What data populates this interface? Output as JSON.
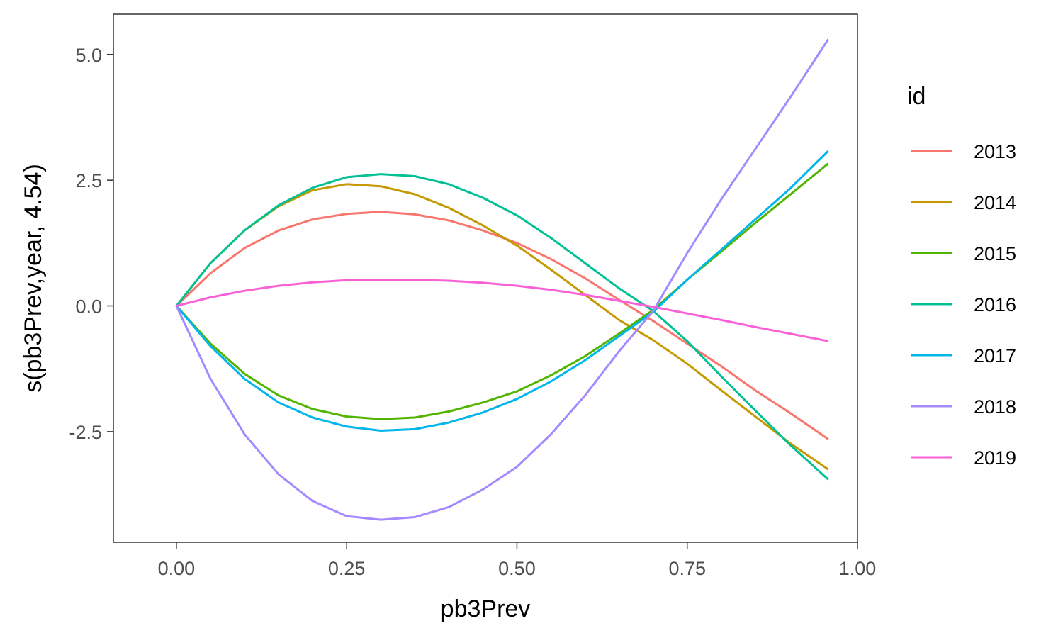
{
  "chart_data": {
    "type": "line",
    "xlabel": "pb3Prev",
    "ylabel": "s(pb3Prev,year, 4.54)",
    "xlim": [
      -0.0925,
      1.0
    ],
    "ylim": [
      -4.7,
      5.8
    ],
    "x_ticks": [
      {
        "value": 0.0,
        "label": "0.00"
      },
      {
        "value": 0.25,
        "label": "0.25"
      },
      {
        "value": 0.5,
        "label": "0.50"
      },
      {
        "value": 0.75,
        "label": "0.75"
      },
      {
        "value": 1.0,
        "label": "1.00"
      }
    ],
    "y_ticks": [
      {
        "value": 5.0,
        "label": "5.0"
      },
      {
        "value": 2.5,
        "label": "2.5"
      },
      {
        "value": 0.0,
        "label": "0.0"
      },
      {
        "value": -2.5,
        "label": "-2.5"
      }
    ],
    "grid": false,
    "legend": {
      "title": "id",
      "placement": "right"
    },
    "series": [
      {
        "name": "2013",
        "color": "#F8766D",
        "x": [
          0,
          0.05,
          0.1,
          0.15,
          0.2,
          0.25,
          0.3,
          0.35,
          0.4,
          0.45,
          0.5,
          0.55,
          0.6,
          0.65,
          0.7,
          0.75,
          0.8,
          0.85,
          0.9,
          0.957
        ],
        "y": [
          0,
          0.65,
          1.15,
          1.5,
          1.72,
          1.83,
          1.87,
          1.82,
          1.7,
          1.5,
          1.25,
          0.93,
          0.55,
          0.12,
          -0.3,
          -0.75,
          -1.2,
          -1.68,
          -2.12,
          -2.65
        ]
      },
      {
        "name": "2014",
        "color": "#C49A00",
        "x": [
          0,
          0.05,
          0.1,
          0.15,
          0.2,
          0.25,
          0.3,
          0.35,
          0.4,
          0.45,
          0.5,
          0.55,
          0.6,
          0.65,
          0.7,
          0.75,
          0.8,
          0.85,
          0.9,
          0.957
        ],
        "y": [
          0,
          0.85,
          1.5,
          1.98,
          2.3,
          2.42,
          2.38,
          2.22,
          1.95,
          1.6,
          1.2,
          0.72,
          0.22,
          -0.28,
          -0.68,
          -1.15,
          -1.68,
          -2.2,
          -2.72,
          -3.25
        ]
      },
      {
        "name": "2015",
        "color": "#53B400",
        "x": [
          0,
          0.05,
          0.1,
          0.15,
          0.2,
          0.25,
          0.3,
          0.35,
          0.4,
          0.45,
          0.5,
          0.55,
          0.6,
          0.65,
          0.7,
          0.75,
          0.8,
          0.85,
          0.9,
          0.957
        ],
        "y": [
          0,
          -0.75,
          -1.35,
          -1.78,
          -2.05,
          -2.2,
          -2.25,
          -2.22,
          -2.1,
          -1.92,
          -1.7,
          -1.38,
          -1.0,
          -0.55,
          -0.08,
          0.52,
          1.08,
          1.65,
          2.2,
          2.83
        ]
      },
      {
        "name": "2016",
        "color": "#00C094",
        "x": [
          0,
          0.05,
          0.1,
          0.15,
          0.2,
          0.25,
          0.3,
          0.35,
          0.4,
          0.45,
          0.5,
          0.55,
          0.6,
          0.65,
          0.7,
          0.75,
          0.8,
          0.85,
          0.9,
          0.957
        ],
        "y": [
          0,
          0.85,
          1.5,
          2.0,
          2.35,
          2.56,
          2.62,
          2.58,
          2.42,
          2.15,
          1.8,
          1.35,
          0.85,
          0.35,
          -0.1,
          -0.7,
          -1.4,
          -2.08,
          -2.75,
          -3.45
        ]
      },
      {
        "name": "2017",
        "color": "#00B6EB",
        "x": [
          0,
          0.05,
          0.1,
          0.15,
          0.2,
          0.25,
          0.3,
          0.35,
          0.4,
          0.45,
          0.5,
          0.55,
          0.6,
          0.65,
          0.7,
          0.75,
          0.8,
          0.85,
          0.9,
          0.957
        ],
        "y": [
          0,
          -0.8,
          -1.45,
          -1.92,
          -2.22,
          -2.4,
          -2.48,
          -2.45,
          -2.32,
          -2.12,
          -1.85,
          -1.5,
          -1.08,
          -0.6,
          -0.12,
          0.52,
          1.12,
          1.72,
          2.32,
          3.08
        ]
      },
      {
        "name": "2018",
        "color": "#A58AFF",
        "x": [
          0,
          0.05,
          0.1,
          0.15,
          0.2,
          0.25,
          0.3,
          0.35,
          0.4,
          0.45,
          0.5,
          0.55,
          0.6,
          0.65,
          0.7,
          0.75,
          0.8,
          0.85,
          0.9,
          0.957
        ],
        "y": [
          0,
          -1.45,
          -2.55,
          -3.35,
          -3.88,
          -4.18,
          -4.25,
          -4.2,
          -4.0,
          -3.65,
          -3.2,
          -2.55,
          -1.78,
          -0.9,
          -0.1,
          1.05,
          2.12,
          3.12,
          4.12,
          5.3
        ]
      },
      {
        "name": "2019",
        "color": "#FB61D7",
        "x": [
          0,
          0.05,
          0.1,
          0.15,
          0.2,
          0.25,
          0.3,
          0.35,
          0.4,
          0.45,
          0.5,
          0.55,
          0.6,
          0.65,
          0.7,
          0.75,
          0.8,
          0.85,
          0.9,
          0.957
        ],
        "y": [
          0,
          0.17,
          0.3,
          0.4,
          0.47,
          0.51,
          0.52,
          0.52,
          0.5,
          0.46,
          0.4,
          0.32,
          0.22,
          0.1,
          -0.02,
          -0.15,
          -0.28,
          -0.42,
          -0.55,
          -0.7
        ]
      }
    ]
  }
}
